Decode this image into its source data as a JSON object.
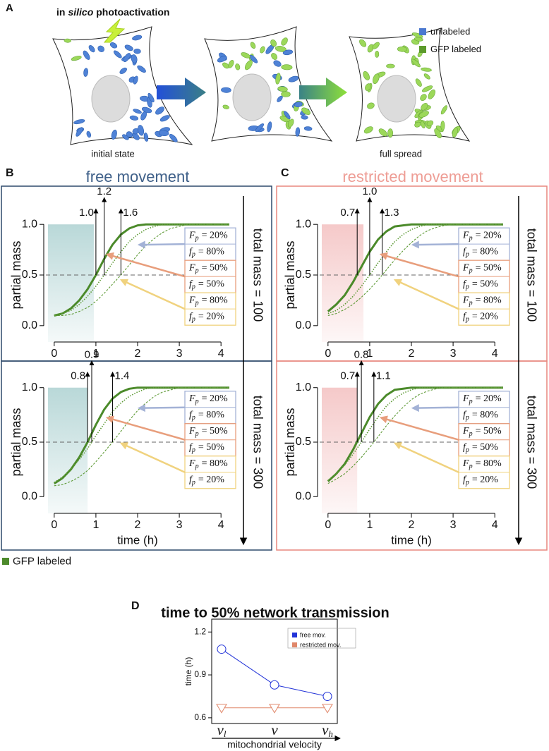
{
  "panel_a": {
    "label": "A",
    "title": [
      "in",
      "silico",
      "photoactivation"
    ],
    "captions": [
      "initial state",
      "full spread"
    ],
    "legend": [
      {
        "name": "unlabeled",
        "color": "#4a78d0"
      },
      {
        "name": "GFP labeled",
        "color": "#5c9a2c"
      }
    ]
  },
  "panels": [
    {
      "label": "B",
      "title": "free movement",
      "color": "#3f6089",
      "frame": "#2e4a6b"
    },
    {
      "label": "C",
      "title": "restricted movement",
      "color": "#ee9d95",
      "frame": "#e8877e"
    }
  ],
  "legend": {
    "name": "GFP labeled",
    "color": "#4d8a2c"
  },
  "chart_data": [
    {
      "type": "line",
      "ylabel": "partial mass",
      "side_label": "total mass = 100",
      "x": [
        0,
        0.2,
        0.4,
        0.6,
        0.8,
        1,
        1.2,
        1.4,
        1.6,
        1.8,
        2,
        2.2,
        2.4,
        2.6,
        2.8,
        3,
        3.2,
        3.4,
        3.6,
        3.8,
        4,
        4.2
      ],
      "xlim": [
        -0.2,
        4.2
      ],
      "ylim": [
        -0.05,
        1.05
      ],
      "xticks": [
        0,
        1,
        2,
        3,
        4
      ],
      "yticks": [
        {
          "value": 0,
          "label": "0.0"
        },
        0.5,
        {
          "value": 1,
          "label": "1.0"
        }
      ],
      "hline": 0.5,
      "shade_to": 0.95,
      "shade_color": "#b9d8d8",
      "series": [
        {
          "color": "#4b8a2a",
          "style": "solid",
          "values": [
            0.1,
            0.12,
            0.17,
            0.25,
            0.36,
            0.5,
            0.66,
            0.8,
            0.9,
            0.96,
            0.99,
            1,
            1,
            1,
            1,
            1,
            1,
            1,
            1,
            1,
            1,
            1
          ]
        },
        {
          "color": "#5e9a36",
          "style": "dotted",
          "values": [
            0.1,
            0.12,
            0.15,
            0.21,
            0.29,
            0.39,
            0.5,
            0.62,
            0.73,
            0.83,
            0.9,
            0.95,
            0.98,
            1,
            1,
            1,
            1,
            1,
            1,
            1,
            1,
            1
          ]
        },
        {
          "color": "#5e9a36",
          "style": "dashed",
          "values": [
            0.1,
            0.1,
            0.11,
            0.14,
            0.18,
            0.24,
            0.32,
            0.41,
            0.5,
            0.6,
            0.7,
            0.79,
            0.86,
            0.92,
            0.96,
            0.98,
            1,
            1,
            1,
            1,
            1,
            1
          ]
        }
      ],
      "markers": [
        {
          "value": 1,
          "label": "1.0"
        },
        1.2,
        1.6
      ],
      "annotations": [
        {
          "color": "#a3b2d6",
          "lines": [
            {
              "symbol": "F",
              "sub": "p",
              "rest": "= 20%"
            },
            {
              "symbol": "f",
              "sub": "p",
              "rest": "= 80%"
            }
          ]
        },
        {
          "color": "#e89e7c",
          "lines": [
            {
              "symbol": "F",
              "sub": "p",
              "rest": "= 50%"
            },
            {
              "symbol": "f",
              "sub": "p",
              "rest": "= 50%"
            }
          ]
        },
        {
          "color": "#f0d27e",
          "lines": [
            {
              "symbol": "F",
              "sub": "p",
              "rest": "= 80%"
            },
            {
              "symbol": "f",
              "sub": "p",
              "rest": "= 20%"
            }
          ]
        }
      ]
    },
    {
      "type": "line",
      "ylabel": "partial mass",
      "xlabel": "time (h)",
      "side_label": "total mass = 300",
      "x": [
        0,
        0.2,
        0.4,
        0.6,
        0.8,
        1,
        1.2,
        1.4,
        1.6,
        1.8,
        2,
        2.2,
        2.4,
        2.6,
        2.8,
        3,
        3.2,
        3.4,
        3.6,
        3.8,
        4,
        4.2
      ],
      "xlim": [
        -0.2,
        4.2
      ],
      "ylim": [
        -0.05,
        1.05
      ],
      "xticks": [
        0,
        1,
        2,
        3,
        4
      ],
      "yticks": [
        {
          "value": 0,
          "label": "0.0"
        },
        0.5,
        {
          "value": 1,
          "label": "1.0"
        }
      ],
      "hline": 0.5,
      "shade_to": 0.8,
      "shade_color": "#b9d8d8",
      "series": [
        {
          "color": "#4b8a2a",
          "style": "solid",
          "values": [
            0.12,
            0.17,
            0.25,
            0.36,
            0.5,
            0.66,
            0.8,
            0.9,
            0.96,
            0.99,
            1,
            1,
            1,
            1,
            1,
            1,
            1,
            1,
            1,
            1,
            1,
            1
          ]
        },
        {
          "color": "#5e9a36",
          "style": "dotted",
          "values": [
            0.13,
            0.18,
            0.25,
            0.34,
            0.44,
            0.56,
            0.67,
            0.78,
            0.86,
            0.92,
            0.96,
            0.99,
            1,
            1,
            1,
            1,
            1,
            1,
            1,
            1,
            1,
            1
          ]
        },
        {
          "color": "#5e9a36",
          "style": "dashed",
          "values": [
            0.1,
            0.11,
            0.14,
            0.18,
            0.24,
            0.32,
            0.41,
            0.5,
            0.6,
            0.7,
            0.79,
            0.86,
            0.92,
            0.96,
            0.98,
            1,
            1,
            1,
            1,
            1,
            1,
            1
          ]
        }
      ],
      "markers": [
        0.8,
        0.9,
        1.4
      ],
      "annotations": [
        {
          "color": "#a3b2d6",
          "lines": [
            {
              "symbol": "F",
              "sub": "p",
              "rest": "= 20%"
            },
            {
              "symbol": "f",
              "sub": "p",
              "rest": "= 80%"
            }
          ]
        },
        {
          "color": "#e89e7c",
          "lines": [
            {
              "symbol": "F",
              "sub": "p",
              "rest": "= 50%"
            },
            {
              "symbol": "f",
              "sub": "p",
              "rest": "= 50%"
            }
          ]
        },
        {
          "color": "#f0d27e",
          "lines": [
            {
              "symbol": "F",
              "sub": "p",
              "rest": "= 80%"
            },
            {
              "symbol": "f",
              "sub": "p",
              "rest": "= 20%"
            }
          ]
        }
      ]
    },
    {
      "type": "line",
      "ylabel": "partial mass",
      "side_label": "total mass = 100",
      "x": [
        0,
        0.2,
        0.4,
        0.6,
        0.8,
        1,
        1.2,
        1.4,
        1.6,
        1.8,
        2,
        2.2,
        2.4,
        2.6,
        2.8,
        3,
        3.2,
        3.4,
        3.6,
        3.8,
        4,
        4.2
      ],
      "xlim": [
        -0.2,
        4.2
      ],
      "ylim": [
        -0.05,
        1.05
      ],
      "xticks": [
        0,
        1,
        2,
        3,
        4
      ],
      "yticks": [
        {
          "value": 0,
          "label": "0.0"
        },
        0.5,
        {
          "value": 1,
          "label": "1.0"
        }
      ],
      "hline": 0.5,
      "shade_to": 0.85,
      "shade_color": "#f5c9c9",
      "series": [
        {
          "color": "#4b8a2a",
          "style": "solid",
          "values": [
            0.14,
            0.21,
            0.3,
            0.43,
            0.58,
            0.73,
            0.85,
            0.93,
            0.98,
            0.99,
            1,
            1,
            1,
            1,
            1,
            1,
            1,
            1,
            1,
            1,
            1,
            1
          ]
        },
        {
          "color": "#5e9a36",
          "style": "dotted",
          "values": [
            0.12,
            0.15,
            0.21,
            0.29,
            0.39,
            0.5,
            0.62,
            0.73,
            0.83,
            0.9,
            0.95,
            0.98,
            1,
            1,
            1,
            1,
            1,
            1,
            1,
            1,
            1,
            1
          ]
        },
        {
          "color": "#5e9a36",
          "style": "dashed",
          "values": [
            0.1,
            0.12,
            0.16,
            0.21,
            0.28,
            0.36,
            0.45,
            0.55,
            0.65,
            0.74,
            0.82,
            0.89,
            0.94,
            0.97,
            0.99,
            1,
            1,
            1,
            1,
            1,
            1,
            1
          ]
        }
      ],
      "markers": [
        0.7,
        {
          "value": 1,
          "label": "1.0"
        },
        1.3
      ],
      "annotations": [
        {
          "color": "#a3b2d6",
          "lines": [
            {
              "symbol": "F",
              "sub": "p",
              "rest": "= 20%"
            },
            {
              "symbol": "f",
              "sub": "p",
              "rest": "= 80%"
            }
          ]
        },
        {
          "color": "#e89e7c",
          "lines": [
            {
              "symbol": "F",
              "sub": "p",
              "rest": "= 50%"
            },
            {
              "symbol": "f",
              "sub": "p",
              "rest": "= 50%"
            }
          ]
        },
        {
          "color": "#f0d27e",
          "lines": [
            {
              "symbol": "F",
              "sub": "p",
              "rest": "= 80%"
            },
            {
              "symbol": "f",
              "sub": "p",
              "rest": "= 20%"
            }
          ]
        }
      ]
    },
    {
      "type": "line",
      "ylabel": "partial mass",
      "xlabel": "time (h)",
      "side_label": "total mass = 300",
      "x": [
        0,
        0.2,
        0.4,
        0.6,
        0.8,
        1,
        1.2,
        1.4,
        1.6,
        1.8,
        2,
        2.2,
        2.4,
        2.6,
        2.8,
        3,
        3.2,
        3.4,
        3.6,
        3.8,
        4,
        4.2
      ],
      "xlim": [
        -0.2,
        4.2
      ],
      "ylim": [
        -0.05,
        1.05
      ],
      "xticks": [
        0,
        1,
        2,
        3,
        4
      ],
      "yticks": [
        {
          "value": 0,
          "label": "0.0"
        },
        0.5,
        {
          "value": 1,
          "label": "1.0"
        }
      ],
      "hline": 0.5,
      "shade_to": 0.7,
      "shade_color": "#f5c9c9",
      "series": [
        {
          "color": "#4b8a2a",
          "style": "solid",
          "values": [
            0.14,
            0.21,
            0.3,
            0.43,
            0.58,
            0.73,
            0.85,
            0.93,
            0.98,
            0.99,
            1,
            1,
            1,
            1,
            1,
            1,
            1,
            1,
            1,
            1,
            1,
            1
          ]
        },
        {
          "color": "#5e9a36",
          "style": "dotted",
          "values": [
            0.15,
            0.21,
            0.29,
            0.39,
            0.5,
            0.62,
            0.73,
            0.83,
            0.9,
            0.95,
            0.98,
            1,
            1,
            1,
            1,
            1,
            1,
            1,
            1,
            1,
            1,
            1
          ]
        },
        {
          "color": "#5e9a36",
          "style": "dashed",
          "values": [
            0.12,
            0.16,
            0.21,
            0.28,
            0.36,
            0.45,
            0.55,
            0.65,
            0.74,
            0.82,
            0.89,
            0.94,
            0.97,
            0.99,
            1,
            1,
            1,
            1,
            1,
            1,
            1,
            1
          ]
        }
      ],
      "markers": [
        0.7,
        0.8,
        1.1
      ],
      "annotations": [
        {
          "color": "#a3b2d6",
          "lines": [
            {
              "symbol": "F",
              "sub": "p",
              "rest": "= 20%"
            },
            {
              "symbol": "f",
              "sub": "p",
              "rest": "= 80%"
            }
          ]
        },
        {
          "color": "#e89e7c",
          "lines": [
            {
              "symbol": "F",
              "sub": "p",
              "rest": "= 50%"
            },
            {
              "symbol": "f",
              "sub": "p",
              "rest": "= 50%"
            }
          ]
        },
        {
          "color": "#f0d27e",
          "lines": [
            {
              "symbol": "F",
              "sub": "p",
              "rest": "= 80%"
            },
            {
              "symbol": "f",
              "sub": "p",
              "rest": "= 20%"
            }
          ]
        }
      ]
    },
    {
      "type": "line",
      "label": "D",
      "title": "time to 50% network transmission",
      "ylabel": "time (h)",
      "xlabel": "mitochondrial velocity",
      "categories": [
        {
          "base": "v",
          "sub": "l"
        },
        {
          "base": "v"
        },
        {
          "base": "v",
          "sub": "h"
        }
      ],
      "ylim": [
        0.56,
        1.29
      ],
      "yticks": [
        0.6,
        0.9,
        1.2
      ],
      "series": [
        {
          "name": "free mov.",
          "color": "#2233d8",
          "marker": "circle",
          "values": [
            1.08,
            0.83,
            0.75
          ]
        },
        {
          "name": "restricted mov.",
          "color": "#e0876a",
          "marker": "triangle-down",
          "values": [
            0.67,
            0.67,
            0.67
          ]
        }
      ]
    }
  ]
}
